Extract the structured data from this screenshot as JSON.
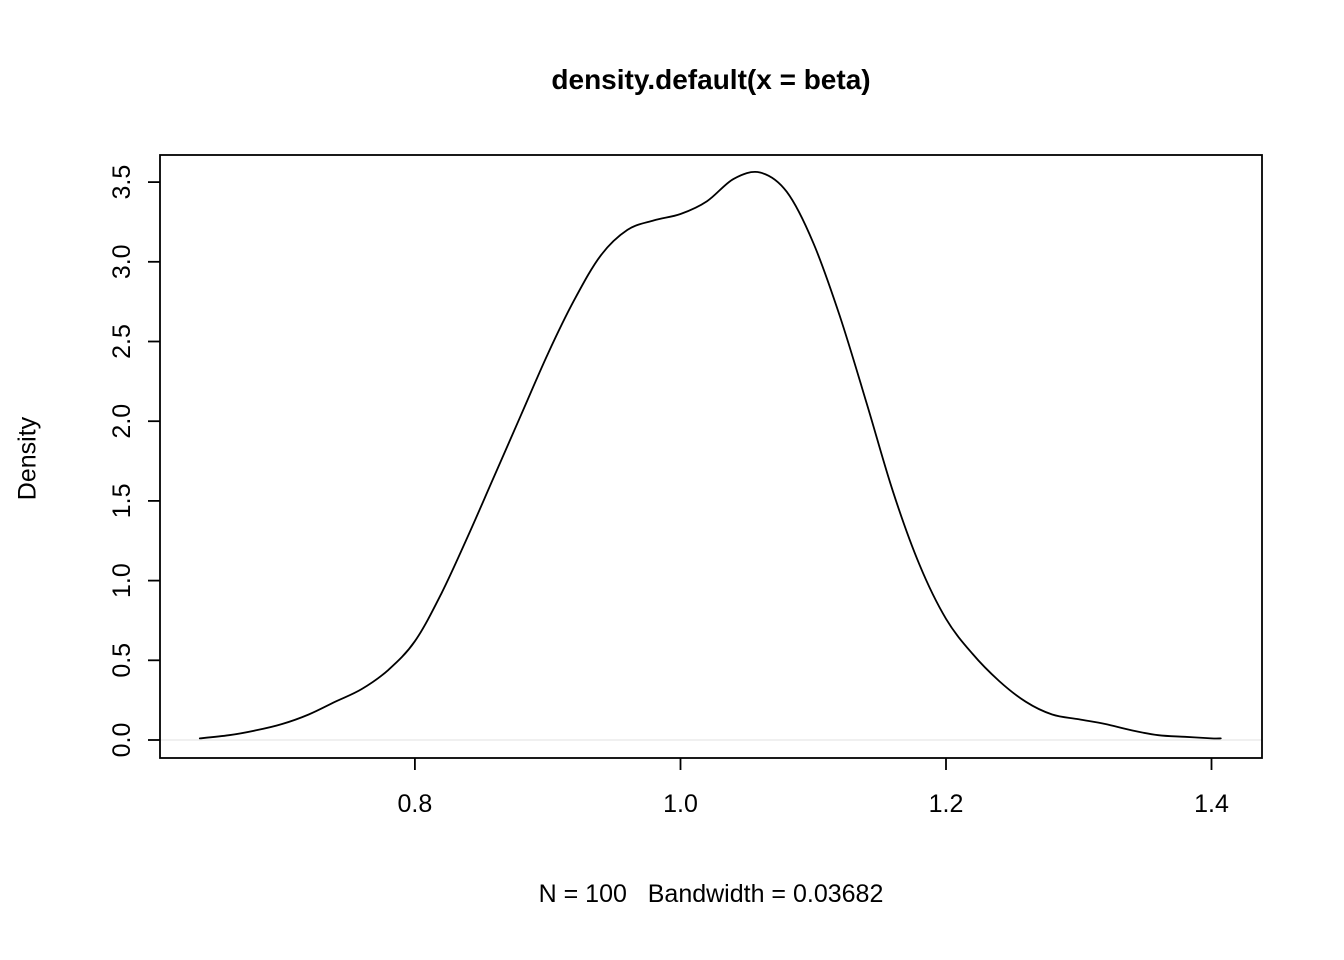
{
  "chart_data": {
    "type": "line",
    "title": "density.default(x = beta)",
    "xlabel": "N = 100   Bandwidth = 0.03682",
    "ylabel": "Density",
    "xlim": [
      0.608,
      1.438
    ],
    "ylim": [
      -0.113,
      3.67
    ],
    "grid": false,
    "legend": null,
    "line_color": "#000000",
    "x_ticks": {
      "values": [
        0.8,
        1.0,
        1.2,
        1.4
      ],
      "labels": [
        "0.8",
        "1.0",
        "1.2",
        "1.4"
      ]
    },
    "y_ticks": {
      "values": [
        0.0,
        0.5,
        1.0,
        1.5,
        2.0,
        2.5,
        3.0,
        3.5
      ],
      "labels": [
        "0.0",
        "0.5",
        "1.0",
        "1.5",
        "2.0",
        "2.5",
        "3.0",
        "3.5"
      ]
    },
    "series": [
      {
        "name": "density",
        "color": "#000000",
        "x": [
          0.638,
          0.66,
          0.68,
          0.7,
          0.72,
          0.74,
          0.76,
          0.78,
          0.8,
          0.82,
          0.84,
          0.86,
          0.88,
          0.9,
          0.92,
          0.94,
          0.96,
          0.98,
          1.0,
          1.02,
          1.04,
          1.06,
          1.08,
          1.1,
          1.12,
          1.14,
          1.16,
          1.18,
          1.2,
          1.22,
          1.24,
          1.26,
          1.28,
          1.3,
          1.32,
          1.34,
          1.36,
          1.38,
          1.4,
          1.407
        ],
        "y": [
          0.01,
          0.03,
          0.06,
          0.1,
          0.16,
          0.24,
          0.32,
          0.44,
          0.62,
          0.92,
          1.28,
          1.66,
          2.04,
          2.42,
          2.76,
          3.04,
          3.2,
          3.26,
          3.3,
          3.38,
          3.52,
          3.56,
          3.44,
          3.12,
          2.66,
          2.12,
          1.56,
          1.1,
          0.76,
          0.54,
          0.37,
          0.24,
          0.16,
          0.13,
          0.1,
          0.06,
          0.03,
          0.02,
          0.01,
          0.01
        ]
      }
    ]
  }
}
